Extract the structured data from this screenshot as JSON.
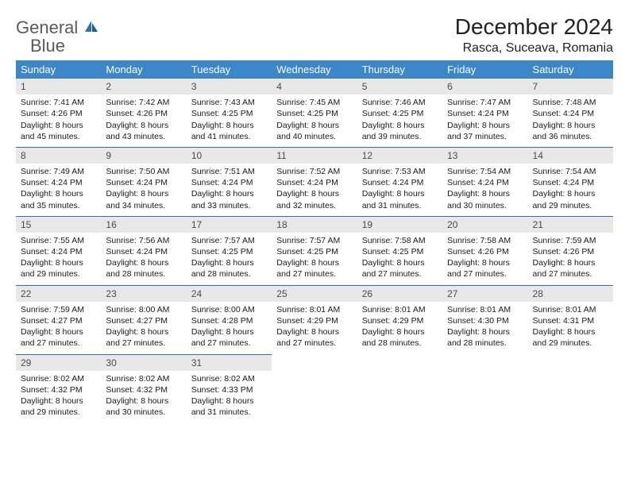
{
  "logo": {
    "word1": "General",
    "word2": "Blue"
  },
  "title": "December 2024",
  "location": "Rasca, Suceava, Romania",
  "colors": {
    "header_bg": "#3b87c8",
    "header_text": "#ffffff",
    "row_divider": "#2f6fb0",
    "daynum_bg": "#e8e8e8",
    "daynum_text": "#4a4a4a",
    "body_text": "#1a1a1a",
    "logo_gray": "#5a5a5a",
    "logo_blue": "#2f6fb0",
    "page_bg": "#ffffff"
  },
  "typography": {
    "title_fontsize": 28,
    "location_fontsize": 16,
    "dayheader_fontsize": 13,
    "cell_fontsize": 10.5,
    "daynum_fontsize": 12
  },
  "day_headers": [
    "Sunday",
    "Monday",
    "Tuesday",
    "Wednesday",
    "Thursday",
    "Friday",
    "Saturday"
  ],
  "weeks": [
    [
      {
        "n": "1",
        "sunrise": "7:41 AM",
        "sunset": "4:26 PM",
        "dl": "8 hours and 45 minutes."
      },
      {
        "n": "2",
        "sunrise": "7:42 AM",
        "sunset": "4:26 PM",
        "dl": "8 hours and 43 minutes."
      },
      {
        "n": "3",
        "sunrise": "7:43 AM",
        "sunset": "4:25 PM",
        "dl": "8 hours and 41 minutes."
      },
      {
        "n": "4",
        "sunrise": "7:45 AM",
        "sunset": "4:25 PM",
        "dl": "8 hours and 40 minutes."
      },
      {
        "n": "5",
        "sunrise": "7:46 AM",
        "sunset": "4:25 PM",
        "dl": "8 hours and 39 minutes."
      },
      {
        "n": "6",
        "sunrise": "7:47 AM",
        "sunset": "4:24 PM",
        "dl": "8 hours and 37 minutes."
      },
      {
        "n": "7",
        "sunrise": "7:48 AM",
        "sunset": "4:24 PM",
        "dl": "8 hours and 36 minutes."
      }
    ],
    [
      {
        "n": "8",
        "sunrise": "7:49 AM",
        "sunset": "4:24 PM",
        "dl": "8 hours and 35 minutes."
      },
      {
        "n": "9",
        "sunrise": "7:50 AM",
        "sunset": "4:24 PM",
        "dl": "8 hours and 34 minutes."
      },
      {
        "n": "10",
        "sunrise": "7:51 AM",
        "sunset": "4:24 PM",
        "dl": "8 hours and 33 minutes."
      },
      {
        "n": "11",
        "sunrise": "7:52 AM",
        "sunset": "4:24 PM",
        "dl": "8 hours and 32 minutes."
      },
      {
        "n": "12",
        "sunrise": "7:53 AM",
        "sunset": "4:24 PM",
        "dl": "8 hours and 31 minutes."
      },
      {
        "n": "13",
        "sunrise": "7:54 AM",
        "sunset": "4:24 PM",
        "dl": "8 hours and 30 minutes."
      },
      {
        "n": "14",
        "sunrise": "7:54 AM",
        "sunset": "4:24 PM",
        "dl": "8 hours and 29 minutes."
      }
    ],
    [
      {
        "n": "15",
        "sunrise": "7:55 AM",
        "sunset": "4:24 PM",
        "dl": "8 hours and 29 minutes."
      },
      {
        "n": "16",
        "sunrise": "7:56 AM",
        "sunset": "4:24 PM",
        "dl": "8 hours and 28 minutes."
      },
      {
        "n": "17",
        "sunrise": "7:57 AM",
        "sunset": "4:25 PM",
        "dl": "8 hours and 28 minutes."
      },
      {
        "n": "18",
        "sunrise": "7:57 AM",
        "sunset": "4:25 PM",
        "dl": "8 hours and 27 minutes."
      },
      {
        "n": "19",
        "sunrise": "7:58 AM",
        "sunset": "4:25 PM",
        "dl": "8 hours and 27 minutes."
      },
      {
        "n": "20",
        "sunrise": "7:58 AM",
        "sunset": "4:26 PM",
        "dl": "8 hours and 27 minutes."
      },
      {
        "n": "21",
        "sunrise": "7:59 AM",
        "sunset": "4:26 PM",
        "dl": "8 hours and 27 minutes."
      }
    ],
    [
      {
        "n": "22",
        "sunrise": "7:59 AM",
        "sunset": "4:27 PM",
        "dl": "8 hours and 27 minutes."
      },
      {
        "n": "23",
        "sunrise": "8:00 AM",
        "sunset": "4:27 PM",
        "dl": "8 hours and 27 minutes."
      },
      {
        "n": "24",
        "sunrise": "8:00 AM",
        "sunset": "4:28 PM",
        "dl": "8 hours and 27 minutes."
      },
      {
        "n": "25",
        "sunrise": "8:01 AM",
        "sunset": "4:29 PM",
        "dl": "8 hours and 27 minutes."
      },
      {
        "n": "26",
        "sunrise": "8:01 AM",
        "sunset": "4:29 PM",
        "dl": "8 hours and 28 minutes."
      },
      {
        "n": "27",
        "sunrise": "8:01 AM",
        "sunset": "4:30 PM",
        "dl": "8 hours and 28 minutes."
      },
      {
        "n": "28",
        "sunrise": "8:01 AM",
        "sunset": "4:31 PM",
        "dl": "8 hours and 29 minutes."
      }
    ],
    [
      {
        "n": "29",
        "sunrise": "8:02 AM",
        "sunset": "4:32 PM",
        "dl": "8 hours and 29 minutes."
      },
      {
        "n": "30",
        "sunrise": "8:02 AM",
        "sunset": "4:32 PM",
        "dl": "8 hours and 30 minutes."
      },
      {
        "n": "31",
        "sunrise": "8:02 AM",
        "sunset": "4:33 PM",
        "dl": "8 hours and 31 minutes."
      },
      null,
      null,
      null,
      null
    ]
  ],
  "labels": {
    "sunrise": "Sunrise:",
    "sunset": "Sunset:",
    "daylight": "Daylight:"
  }
}
